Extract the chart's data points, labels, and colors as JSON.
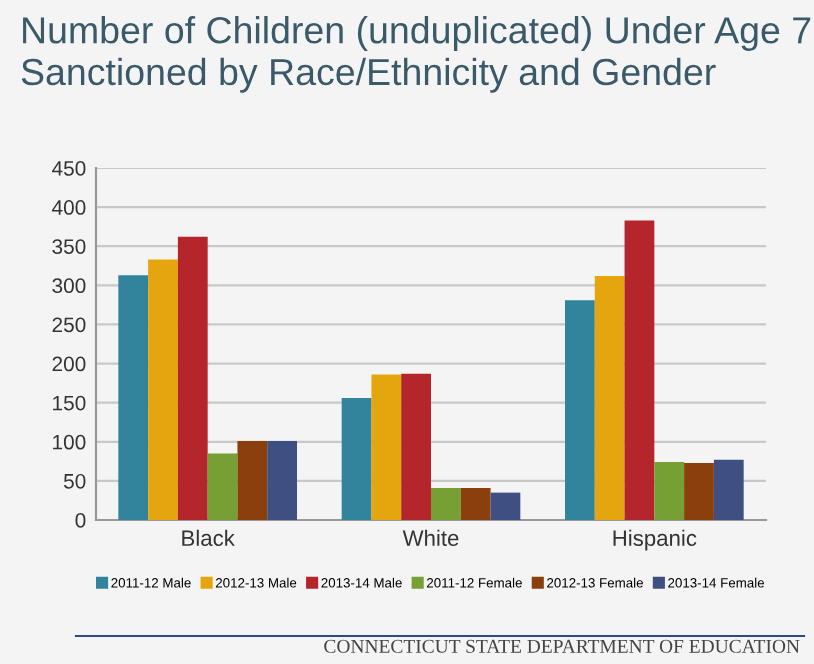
{
  "chart_data": {
    "type": "bar",
    "title": "Number of Children (unduplicated) Under Age 7\nSanctioned by Race/Ethnicity and Gender",
    "categories": [
      "Black",
      "White",
      "Hispanic"
    ],
    "series": [
      {
        "name": "2011-12 Male",
        "color": "#31849b",
        "values": [
          313,
          156,
          281
        ]
      },
      {
        "name": "2012-13 Male",
        "color": "#e5a50f",
        "values": [
          333,
          186,
          312
        ]
      },
      {
        "name": "2013-14 Male",
        "color": "#b4262b",
        "values": [
          362,
          187,
          383
        ]
      },
      {
        "name": "2011-12 Female",
        "color": "#77a034",
        "values": [
          85,
          41,
          74
        ]
      },
      {
        "name": "2012-13 Female",
        "color": "#8b3f0c",
        "values": [
          101,
          41,
          73
        ]
      },
      {
        "name": "2013-14 Female",
        "color": "#3f4f82",
        "values": [
          101,
          35,
          77
        ]
      }
    ],
    "ylim": [
      0,
      450
    ],
    "yticks": [
      0,
      50,
      100,
      150,
      200,
      250,
      300,
      350,
      400,
      450
    ],
    "grid": "y",
    "legend": "bottom",
    "annotations": [
      "CONNECTICUT STATE DEPARTMENT OF EDUCATION"
    ]
  }
}
